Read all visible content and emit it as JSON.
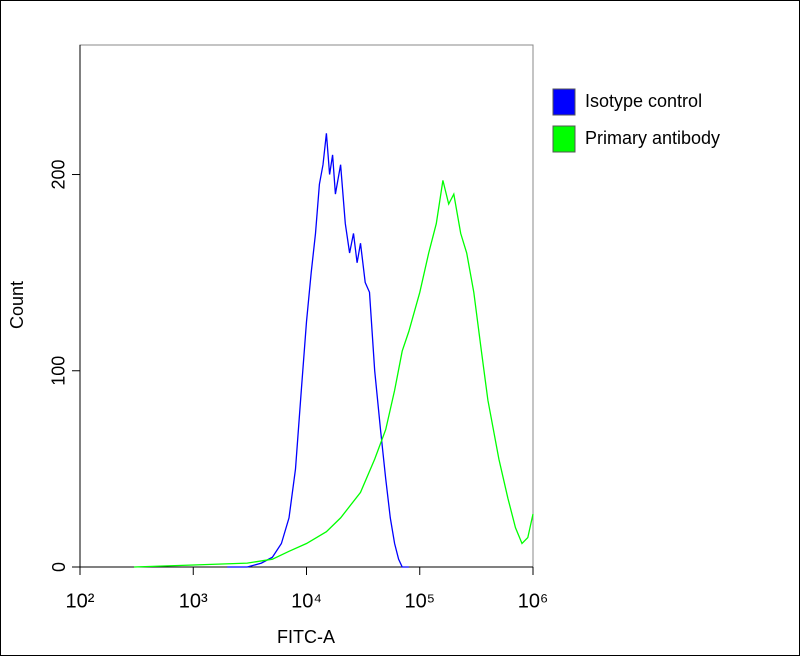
{
  "chart_data": {
    "type": "line",
    "x_label": "FITC-A",
    "y_label": "Count",
    "x_log": true,
    "xlim": [
      100,
      1000000
    ],
    "xticks": [
      {
        "value": 100,
        "label": "10²"
      },
      {
        "value": 1000,
        "label": "10³"
      },
      {
        "value": 10000,
        "label": "10⁴"
      },
      {
        "value": 100000,
        "label": "10⁵"
      },
      {
        "value": 1000000,
        "label": "10⁶"
      }
    ],
    "ylim": [
      0,
      266
    ],
    "yticks": [
      0,
      100,
      200
    ],
    "legend": "right",
    "series": [
      {
        "name": "Isotype control",
        "color": "#0000ff",
        "x": [
          2000,
          3000,
          4000,
          5000,
          6000,
          7000,
          8000,
          9000,
          10000,
          11000,
          12000,
          13000,
          14000,
          15000,
          16000,
          17000,
          18000,
          20000,
          22000,
          24000,
          26000,
          28000,
          30000,
          33000,
          36000,
          40000,
          45000,
          50000,
          55000,
          60000,
          65000,
          70000,
          80000
        ],
        "values": [
          0,
          0,
          2,
          5,
          12,
          25,
          50,
          90,
          125,
          150,
          170,
          195,
          205,
          221,
          200,
          210,
          190,
          205,
          175,
          160,
          170,
          155,
          165,
          145,
          140,
          100,
          70,
          45,
          25,
          12,
          4,
          0,
          0
        ]
      },
      {
        "name": "Primary antibody",
        "color": "#00ff00",
        "x": [
          300,
          1000,
          3000,
          5000,
          7000,
          10000,
          15000,
          20000,
          30000,
          40000,
          50000,
          60000,
          70000,
          80000,
          100000,
          120000,
          140000,
          160000,
          180000,
          200000,
          230000,
          260000,
          300000,
          350000,
          400000,
          500000,
          600000,
          700000,
          800000,
          900000,
          1000000
        ],
        "values": [
          0,
          1,
          2,
          4,
          8,
          12,
          18,
          25,
          38,
          55,
          70,
          90,
          110,
          120,
          140,
          160,
          175,
          197,
          185,
          190,
          170,
          160,
          140,
          110,
          85,
          55,
          35,
          20,
          12,
          15,
          27
        ]
      }
    ]
  }
}
